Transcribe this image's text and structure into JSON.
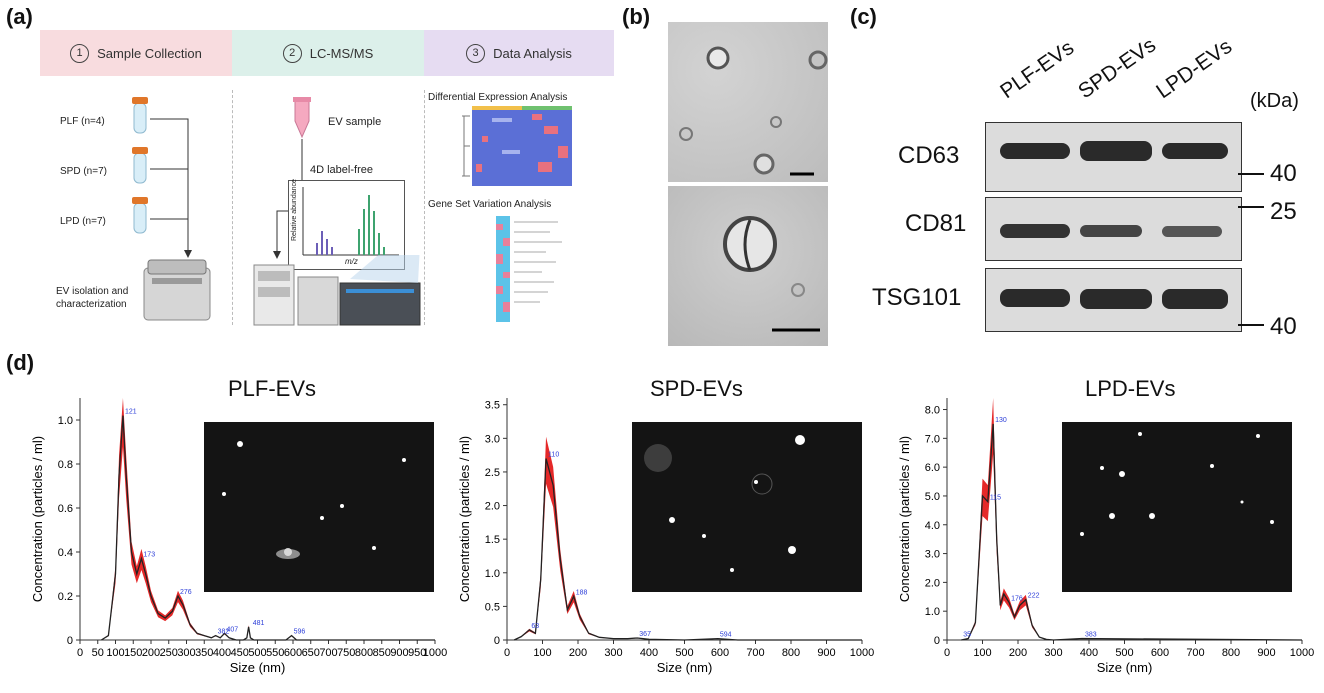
{
  "panels": {
    "a": "(a)",
    "b": "(b)",
    "c": "(c)",
    "d": "(d)"
  },
  "workflow": {
    "steps": [
      {
        "num": "1",
        "label": "Sample Collection"
      },
      {
        "num": "2",
        "label": "LC-MS/MS"
      },
      {
        "num": "3",
        "label": "Data Analysis"
      }
    ],
    "samples": [
      "PLF (n=4)",
      "SPD (n=7)",
      "LPD (n=7)"
    ],
    "isolation": [
      "EV isolation and",
      "characterization"
    ],
    "ev_sample": "EV sample",
    "label_free": "4D label-free",
    "ms_ylabel": [
      "Relative",
      "abundance"
    ],
    "ms_xlabel": "m/z",
    "dea": "Differential Expression Analysis",
    "gsva": "Gene Set Variation Analysis"
  },
  "western": {
    "lanes": [
      "PLF-EVs",
      "SPD-EVs",
      "LPD-EVs"
    ],
    "unit": "(kDa)",
    "proteins": [
      "CD63",
      "CD81",
      "TSG101"
    ],
    "markers": [
      "40",
      "25",
      "40"
    ]
  },
  "nta_common": {
    "xlabel": "Size (nm)",
    "ylabel": "Concentration (particles / ml)"
  },
  "chart_data": [
    {
      "type": "line",
      "title": "PLF-EVs",
      "xlabel": "Size (nm)",
      "ylabel": "Concentration (particles / ml)",
      "xlim": [
        0,
        1000
      ],
      "ylim": [
        0,
        1.1
      ],
      "xticks": [
        0,
        50,
        100,
        150,
        200,
        250,
        300,
        350,
        400,
        450,
        500,
        550,
        600,
        650,
        700,
        750,
        800,
        850,
        900,
        950,
        1000
      ],
      "yticks": [
        "0",
        "0.2",
        "0.4",
        "0.6",
        "0.8",
        "1.0"
      ],
      "x": [
        60,
        80,
        100,
        110,
        121,
        130,
        145,
        160,
        173,
        185,
        200,
        220,
        240,
        260,
        276,
        290,
        310,
        330,
        350,
        370,
        382,
        395,
        407,
        420,
        440,
        460,
        470,
        475,
        480,
        490,
        500,
        550,
        580,
        596,
        610,
        650,
        1000
      ],
      "y": [
        0,
        0.02,
        0.3,
        0.75,
        1.02,
        0.75,
        0.4,
        0.3,
        0.37,
        0.3,
        0.2,
        0.12,
        0.1,
        0.13,
        0.2,
        0.16,
        0.07,
        0.03,
        0.02,
        0.01,
        0.02,
        0.01,
        0.03,
        0.01,
        0.0,
        0.0,
        0.01,
        0.06,
        0.01,
        0.0,
        0.0,
        0.0,
        0.0,
        0.02,
        0.0,
        0.0,
        0.0
      ],
      "peak_labels": [
        {
          "x": 121,
          "y": 1.02,
          "text": "121"
        },
        {
          "x": 173,
          "y": 0.37,
          "text": "173"
        },
        {
          "x": 276,
          "y": 0.2,
          "text": "276"
        },
        {
          "x": 382,
          "y": 0.02,
          "text": "382"
        },
        {
          "x": 407,
          "y": 0.03,
          "text": "407"
        },
        {
          "x": 481,
          "y": 0.06,
          "text": "481"
        },
        {
          "x": 596,
          "y": 0.02,
          "text": "596"
        }
      ]
    },
    {
      "type": "line",
      "title": "SPD-EVs",
      "xlabel": "Size (nm)",
      "ylabel": "Concentration (particles / ml)",
      "xlim": [
        0,
        1000
      ],
      "ylim": [
        0,
        3.6
      ],
      "xticks": [
        0,
        100,
        200,
        300,
        400,
        500,
        600,
        700,
        800,
        900,
        1000
      ],
      "yticks": [
        "0",
        "0.5",
        "1.0",
        "1.5",
        "2.0",
        "2.5",
        "3.0",
        "3.5"
      ],
      "x": [
        20,
        40,
        63,
        80,
        95,
        110,
        130,
        150,
        170,
        188,
        205,
        230,
        260,
        300,
        340,
        367,
        400,
        500,
        594,
        650,
        1000
      ],
      "y": [
        0,
        0.05,
        0.15,
        0.1,
        0.9,
        2.7,
        2.3,
        1.2,
        0.45,
        0.65,
        0.35,
        0.1,
        0.04,
        0.02,
        0.02,
        0.03,
        0.01,
        0.0,
        0.02,
        0.0,
        0.0
      ],
      "peak_labels": [
        {
          "x": 63,
          "y": 0.15,
          "text": "63"
        },
        {
          "x": 110,
          "y": 2.7,
          "text": "110"
        },
        {
          "x": 188,
          "y": 0.65,
          "text": "188"
        },
        {
          "x": 367,
          "y": 0.03,
          "text": "367"
        },
        {
          "x": 594,
          "y": 0.02,
          "text": "594"
        }
      ]
    },
    {
      "type": "line",
      "title": "LPD-EVs",
      "xlabel": "Size (nm)",
      "ylabel": "Concentration (particles / ml)",
      "xlim": [
        0,
        1000
      ],
      "ylim": [
        0,
        8.4
      ],
      "xticks": [
        0,
        100,
        200,
        300,
        400,
        500,
        600,
        700,
        800,
        900,
        1000
      ],
      "yticks": [
        "0",
        "1.0",
        "2.0",
        "3.0",
        "4.0",
        "5.0",
        "6.0",
        "7.0",
        "8.0"
      ],
      "x": [
        40,
        60,
        80,
        100,
        115,
        130,
        140,
        150,
        160,
        175,
        190,
        205,
        222,
        240,
        260,
        280,
        300,
        380,
        1000
      ],
      "y": [
        0,
        0.05,
        0.6,
        5.0,
        4.8,
        7.5,
        3.5,
        1.2,
        1.6,
        1.3,
        0.8,
        1.2,
        1.4,
        0.5,
        0.1,
        0.02,
        0.0,
        0.05,
        0.0
      ],
      "peak_labels": [
        {
          "x": 40,
          "y": 0.05,
          "text": "35"
        },
        {
          "x": 115,
          "y": 4.8,
          "text": "115"
        },
        {
          "x": 130,
          "y": 7.5,
          "text": "130"
        },
        {
          "x": 175,
          "y": 1.3,
          "text": "176"
        },
        {
          "x": 222,
          "y": 1.4,
          "text": "222"
        },
        {
          "x": 383,
          "y": 0.05,
          "text": "383"
        }
      ]
    }
  ]
}
